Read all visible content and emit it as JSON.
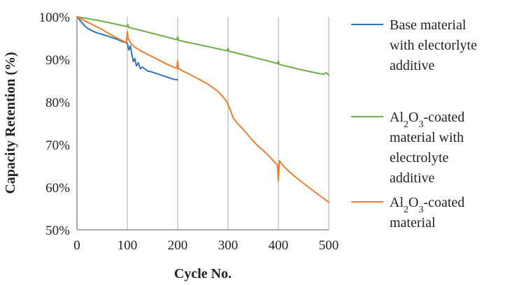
{
  "chart_data": {
    "type": "line",
    "title": "",
    "xlabel": "Cycle No.",
    "ylabel": "Capacity Retention (%)",
    "xlim": [
      0,
      500
    ],
    "ylim": [
      50,
      100
    ],
    "x_ticks": [
      0,
      100,
      200,
      300,
      400,
      500
    ],
    "y_ticks": [
      50,
      60,
      70,
      80,
      90,
      100
    ],
    "x_tick_labels": [
      "0",
      "100",
      "200",
      "300",
      "400",
      "500"
    ],
    "y_tick_labels": [
      "50%",
      "60%",
      "70%",
      "80%",
      "90%",
      "100%"
    ],
    "grid": "vertical",
    "legend_position": "right",
    "series": [
      {
        "name_lines": [
          "Base material",
          "with electorlyte",
          "additive"
        ],
        "color": "#2e75b6",
        "points": [
          [
            0,
            100
          ],
          [
            5,
            99.3
          ],
          [
            10,
            98.6
          ],
          [
            15,
            97.9
          ],
          [
            20,
            97.4
          ],
          [
            30,
            96.7
          ],
          [
            40,
            96.2
          ],
          [
            50,
            95.9
          ],
          [
            60,
            95.5
          ],
          [
            70,
            95.1
          ],
          [
            80,
            94.7
          ],
          [
            90,
            94.2
          ],
          [
            100,
            93.8
          ],
          [
            103,
            92.2
          ],
          [
            106,
            93.2
          ],
          [
            109,
            91.2
          ],
          [
            112,
            89.5
          ],
          [
            115,
            90.2
          ],
          [
            118,
            88.5
          ],
          [
            122,
            89.2
          ],
          [
            126,
            87.8
          ],
          [
            130,
            88.2
          ],
          [
            140,
            87.3
          ],
          [
            150,
            87.0
          ],
          [
            160,
            86.6
          ],
          [
            170,
            86.2
          ],
          [
            180,
            85.8
          ],
          [
            190,
            85.4
          ],
          [
            200,
            85.2
          ]
        ]
      },
      {
        "name_lines": [
          "Al2O3-coated",
          "material with",
          "electrolyte",
          "additive"
        ],
        "name_rich": [
          [
            {
              "t": "Al"
            },
            {
              "t": "2",
              "sub": true
            },
            {
              "t": "O"
            },
            {
              "t": "3",
              "sub": true
            },
            {
              "t": "-coated"
            }
          ],
          [
            {
              "t": "material with"
            }
          ],
          [
            {
              "t": "electrolyte"
            }
          ],
          [
            {
              "t": "additive"
            }
          ]
        ],
        "color": "#70ad47",
        "points": [
          [
            0,
            100
          ],
          [
            20,
            99.6
          ],
          [
            40,
            99.2
          ],
          [
            60,
            98.7
          ],
          [
            80,
            98.2
          ],
          [
            99,
            97.7
          ],
          [
            101,
            98.2
          ],
          [
            103,
            97.5
          ],
          [
            120,
            97.0
          ],
          [
            140,
            96.4
          ],
          [
            160,
            95.8
          ],
          [
            180,
            95.2
          ],
          [
            198,
            94.6
          ],
          [
            200,
            95.3
          ],
          [
            202,
            94.5
          ],
          [
            220,
            94.0
          ],
          [
            240,
            93.5
          ],
          [
            260,
            93.0
          ],
          [
            280,
            92.5
          ],
          [
            298,
            92.0
          ],
          [
            300,
            92.6
          ],
          [
            302,
            91.9
          ],
          [
            320,
            91.4
          ],
          [
            340,
            90.8
          ],
          [
            360,
            90.2
          ],
          [
            380,
            89.6
          ],
          [
            398,
            89.0
          ],
          [
            400,
            89.6
          ],
          [
            402,
            88.8
          ],
          [
            420,
            88.3
          ],
          [
            440,
            87.7
          ],
          [
            460,
            87.2
          ],
          [
            480,
            86.7
          ],
          [
            490,
            86.5
          ],
          [
            495,
            86.9
          ],
          [
            500,
            86.3
          ]
        ]
      },
      {
        "name_lines": [
          "Al2O3-coated",
          "material"
        ],
        "name_rich": [
          [
            {
              "t": "Al"
            },
            {
              "t": "2",
              "sub": true
            },
            {
              "t": "O"
            },
            {
              "t": "3",
              "sub": true
            },
            {
              "t": "-coated"
            }
          ],
          [
            {
              "t": "material"
            }
          ]
        ],
        "color": "#ed7d31",
        "points": [
          [
            0,
            100
          ],
          [
            10,
            99.4
          ],
          [
            20,
            98.8
          ],
          [
            30,
            98.2
          ],
          [
            40,
            97.6
          ],
          [
            50,
            97.0
          ],
          [
            60,
            96.3
          ],
          [
            70,
            95.6
          ],
          [
            80,
            95.0
          ],
          [
            90,
            94.4
          ],
          [
            98,
            93.9
          ],
          [
            100,
            96.5
          ],
          [
            102,
            94.8
          ],
          [
            110,
            93.3
          ],
          [
            120,
            92.5
          ],
          [
            130,
            91.8
          ],
          [
            140,
            91.2
          ],
          [
            150,
            90.6
          ],
          [
            160,
            90.0
          ],
          [
            170,
            89.4
          ],
          [
            180,
            88.8
          ],
          [
            190,
            88.3
          ],
          [
            198,
            87.9
          ],
          [
            200,
            89.6
          ],
          [
            202,
            87.8
          ],
          [
            210,
            87.3
          ],
          [
            220,
            86.7
          ],
          [
            240,
            85.5
          ],
          [
            260,
            84.2
          ],
          [
            280,
            82.5
          ],
          [
            290,
            81.2
          ],
          [
            298,
            80.0
          ],
          [
            300,
            79.4
          ],
          [
            305,
            78.0
          ],
          [
            310,
            76.3
          ],
          [
            320,
            74.8
          ],
          [
            330,
            73.6
          ],
          [
            340,
            72.2
          ],
          [
            350,
            70.8
          ],
          [
            360,
            69.6
          ],
          [
            370,
            68.6
          ],
          [
            380,
            67.5
          ],
          [
            390,
            66.2
          ],
          [
            398,
            65.2
          ],
          [
            400,
            61.5
          ],
          [
            402,
            66.2
          ],
          [
            410,
            65.0
          ],
          [
            420,
            63.8
          ],
          [
            440,
            61.8
          ],
          [
            460,
            60.0
          ],
          [
            480,
            58.2
          ],
          [
            500,
            56.5
          ]
        ]
      }
    ]
  }
}
